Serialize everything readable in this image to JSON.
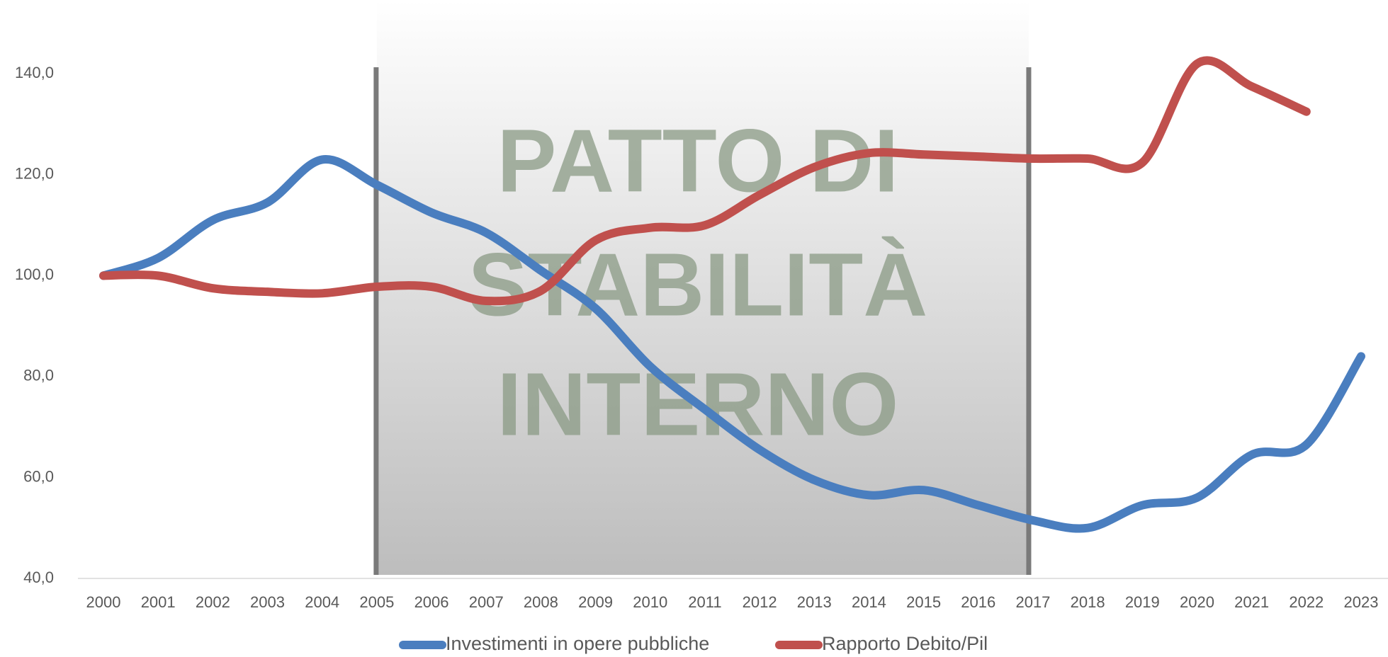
{
  "chart_data": {
    "type": "line",
    "categories": [
      "2000",
      "2001",
      "2002",
      "2003",
      "2004",
      "2005",
      "2006",
      "2007",
      "2008",
      "2009",
      "2010",
      "2011",
      "2012",
      "2013",
      "2014",
      "2015",
      "2016",
      "2017",
      "2018",
      "2019",
      "2020",
      "2021",
      "2022",
      "2023"
    ],
    "series": [
      {
        "name": "Investimenti in opere pubbliche",
        "color": "#4a7ebf",
        "values": [
          100,
          103.5,
          111,
          114.5,
          123,
          118,
          112.5,
          108.5,
          101,
          93.5,
          82,
          73.5,
          65.5,
          59.5,
          56.5,
          57.5,
          54.5,
          51.5,
          50,
          54.5,
          56,
          64.5,
          66.5,
          84
        ]
      },
      {
        "name": "Rapporto Debito/Pil",
        "color": "#c0504d",
        "values": [
          100,
          100,
          97.5,
          96.8,
          96.5,
          97.8,
          97.8,
          95,
          97,
          107,
          109.5,
          110,
          116,
          121.5,
          124.3,
          124,
          123.6,
          123.2,
          123.2,
          122.4,
          142,
          137.5,
          132.5,
          null
        ]
      }
    ],
    "ylim": [
      40,
      150
    ],
    "yticks": [
      {
        "value": 40,
        "label": "40,0"
      },
      {
        "value": 60,
        "label": "60,0"
      },
      {
        "value": 80,
        "label": "80,0"
      },
      {
        "value": 100,
        "label": "100,0"
      },
      {
        "value": 120,
        "label": "120,0"
      },
      {
        "value": 140,
        "label": "140,0"
      }
    ],
    "grid": false,
    "legend": "bottom",
    "annotation": {
      "lines": [
        "PATTO DI",
        "STABILITÀ",
        "INTERNO"
      ],
      "from": "2005",
      "to": "2017"
    }
  }
}
